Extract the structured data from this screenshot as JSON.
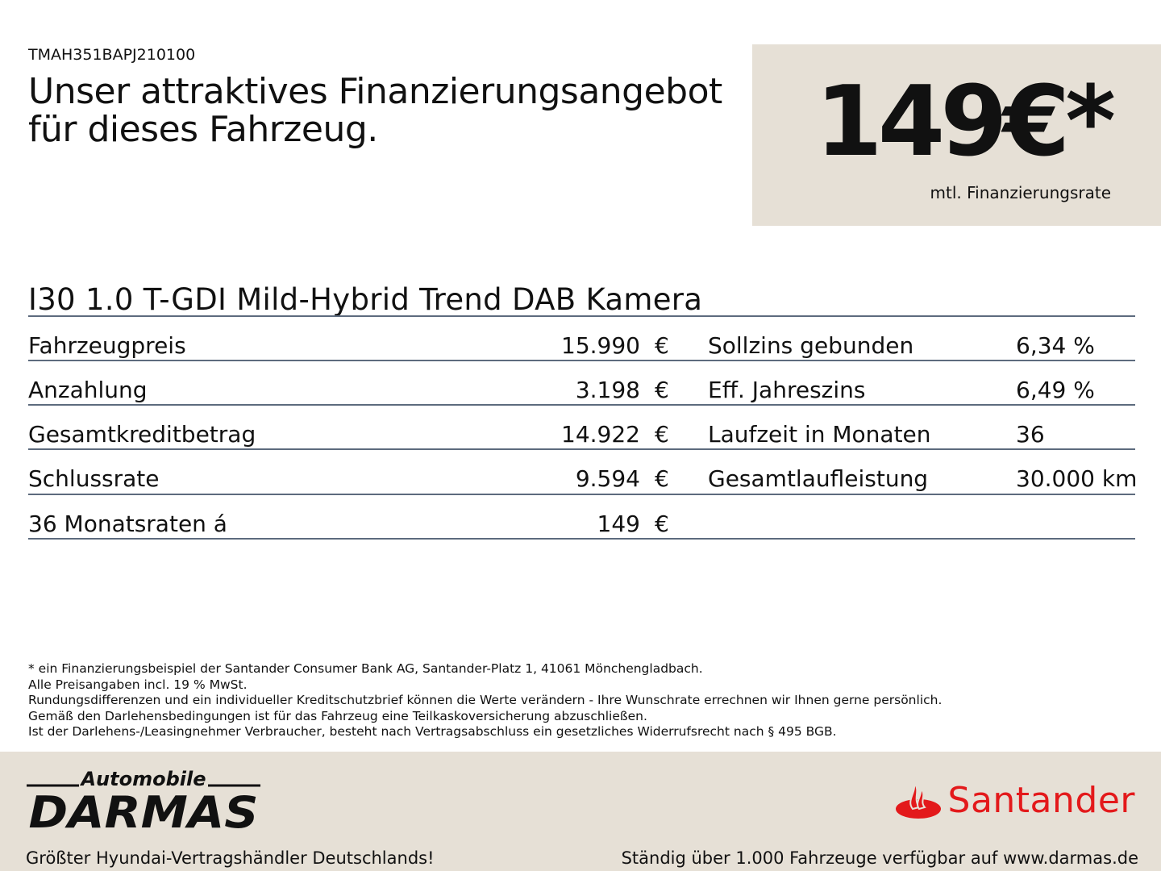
{
  "vehicle_code": "TMAH351BAPJ210100",
  "headline": [
    "Unser attraktives Finanzierungsangebot",
    "für dieses Fahrzeug."
  ],
  "price_box": {
    "price": "149€*",
    "label": "mtl. Finanzierungsrate"
  },
  "model": "I30 1.0 T-GDI Mild-Hybrid Trend DAB Kamera",
  "left_rows": [
    {
      "label": "Fahrzeugpreis",
      "value": "15.990",
      "unit": "€"
    },
    {
      "label": "Anzahlung",
      "value": "3.198",
      "unit": "€"
    },
    {
      "label": "Gesamtkreditbetrag",
      "value": "14.922",
      "unit": "€"
    },
    {
      "label": "Schlussrate",
      "value": "9.594",
      "unit": "€"
    },
    {
      "label": "36 Monatsraten á",
      "value": "149",
      "unit": "€"
    }
  ],
  "right_rows": [
    {
      "label": "Sollzins gebunden",
      "value": "6,34 %"
    },
    {
      "label": "Eff. Jahreszins",
      "value": "6,49 %"
    },
    {
      "label": "Laufzeit in Monaten",
      "value": "36"
    },
    {
      "label": "Gesamtlaufleistung",
      "value": "30.000 km"
    }
  ],
  "notes": [
    "* ein Finanzierungsbeispiel der Santander Consumer Bank AG, Santander-Platz 1, 41061 Mönchengladbach.",
    "Alle Preisangaben incl. 19 % MwSt.",
    "Rundungsdifferenzen und ein individueller Kreditschutzbrief können die Werte verändern - Ihre Wunschrate errechnen wir Ihnen gerne persönlich.",
    "Gemäß den Darlehensbedingungen ist für das Fahrzeug eine Teilkaskoversicherung abzuschließen.",
    "Ist der Darlehens-/Leasingnehmer Verbraucher, besteht nach Vertragsabschluss ein gesetzliches Widerrufsrecht nach § 495 BGB."
  ],
  "footer": {
    "dealer_logo": {
      "top": "Automobile",
      "main": "DARMAS"
    },
    "dealer_tagline": "Größter Hyundai-Vertragshändler Deutschlands!",
    "bank_logo": "Santander",
    "right_text": "Ständig über 1.000 Fahrzeuge verfügbar auf www.darmas.de"
  },
  "colors": {
    "beige": "#e6e0d6",
    "santander_red": "#e3191b",
    "rule": "#5d6b7e"
  }
}
